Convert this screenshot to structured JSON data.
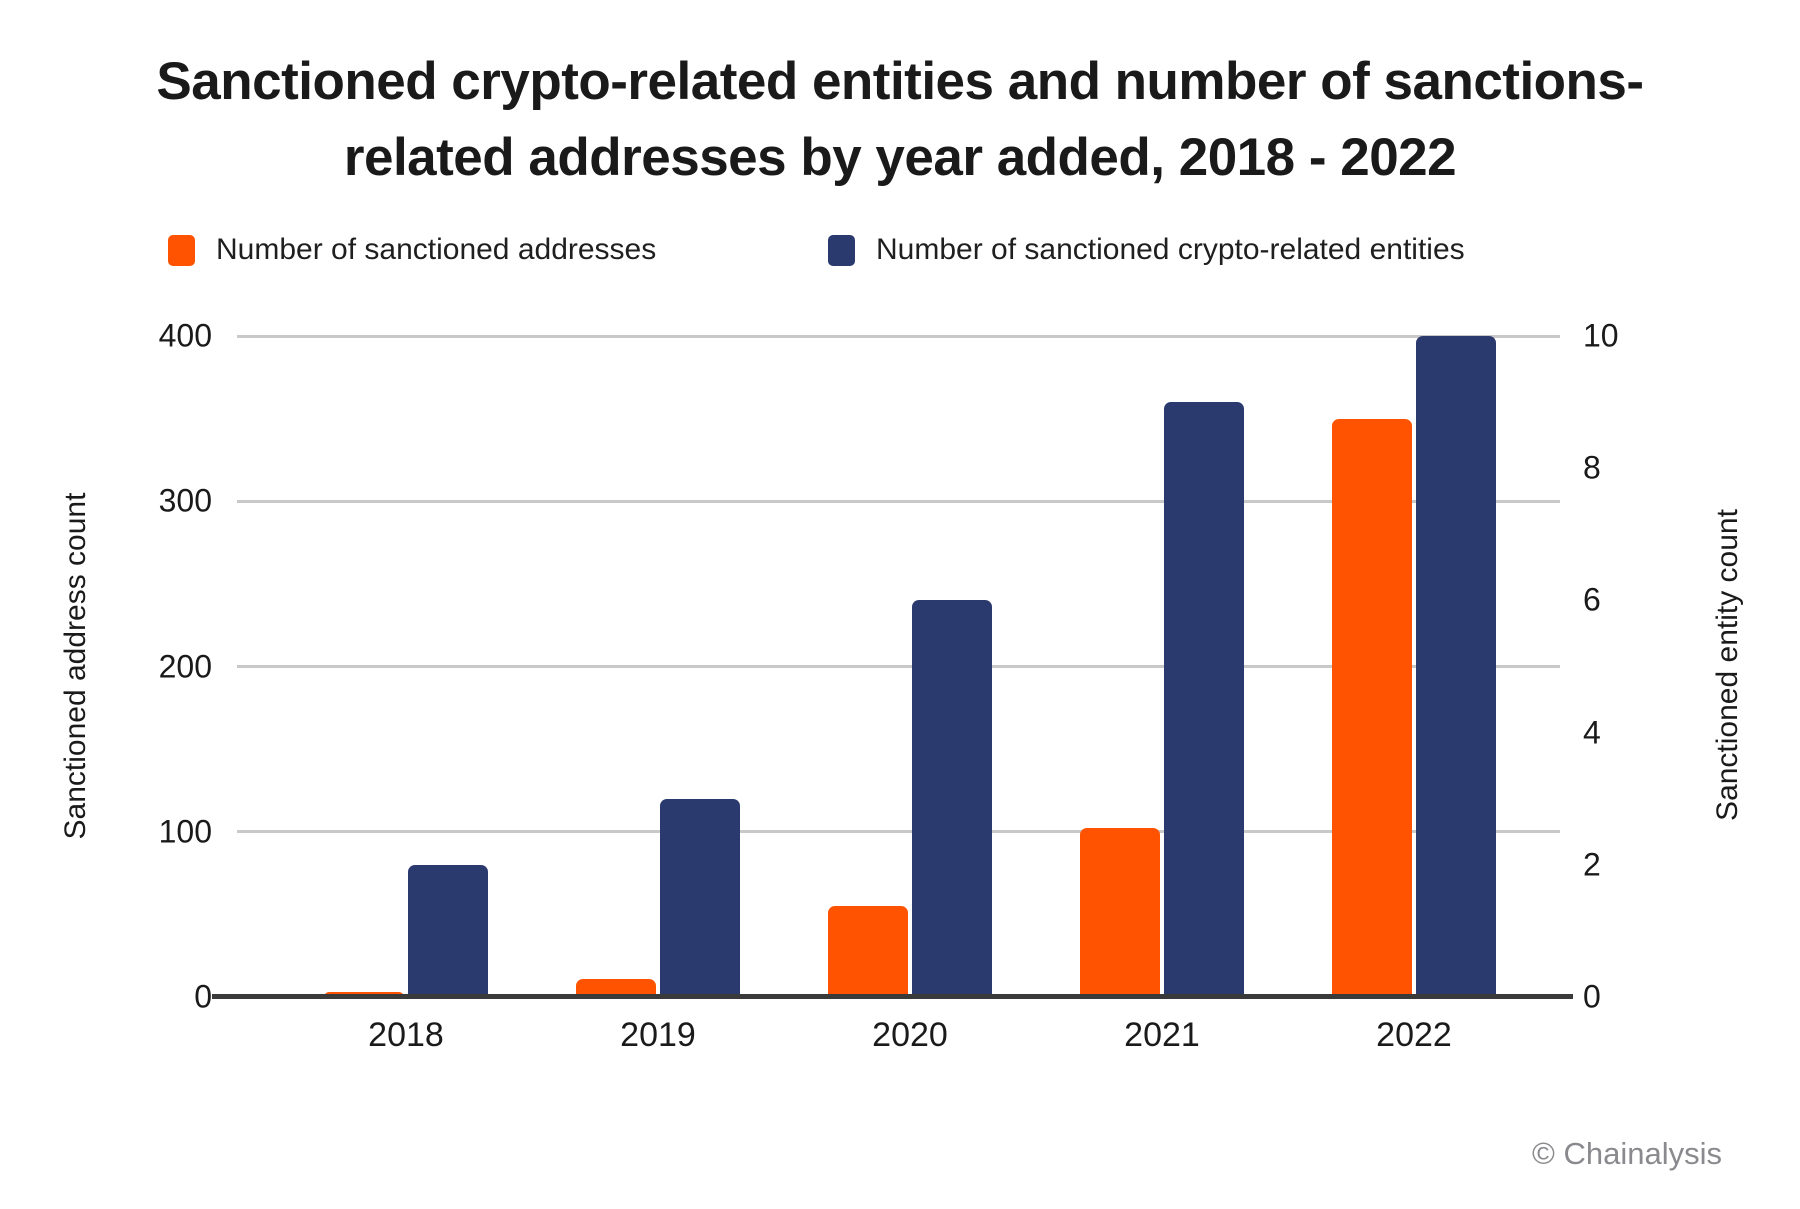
{
  "credit": "© Chainalysis",
  "chart_data": {
    "type": "bar",
    "title": "Sanctioned crypto-related entities and number of sanctions-related addresses by year added, 2018 - 2022",
    "title_lines": [
      "Sanctioned crypto-related entities and number of sanctions-",
      "related addresses by year added, 2018 - 2022"
    ],
    "categories": [
      "2018",
      "2019",
      "2020",
      "2021",
      "2022"
    ],
    "series": [
      {
        "name": "Number of sanctioned addresses",
        "axis": "left",
        "color": "#FF5301",
        "values": [
          3,
          11,
          55,
          102,
          350
        ]
      },
      {
        "name": "Number of sanctioned crypto-related entities",
        "axis": "right",
        "color": "#2B3A6E",
        "values": [
          2,
          3,
          6,
          9,
          10
        ]
      }
    ],
    "left_axis": {
      "label": "Sanctioned address count",
      "ticks": [
        0,
        100,
        200,
        300,
        400
      ],
      "range": [
        0,
        400
      ]
    },
    "right_axis": {
      "label": "Sanctioned entity count",
      "ticks": [
        0,
        2,
        4,
        6,
        8,
        10
      ],
      "range": [
        0,
        10
      ]
    },
    "grid": true,
    "legend_position": "top",
    "colors": {
      "gridline": "#C9C9C9",
      "baseline": "#3A3A3A",
      "text": "#1A1A1A",
      "credit": "#8A8A8E",
      "background": "#FFFFFF"
    }
  }
}
